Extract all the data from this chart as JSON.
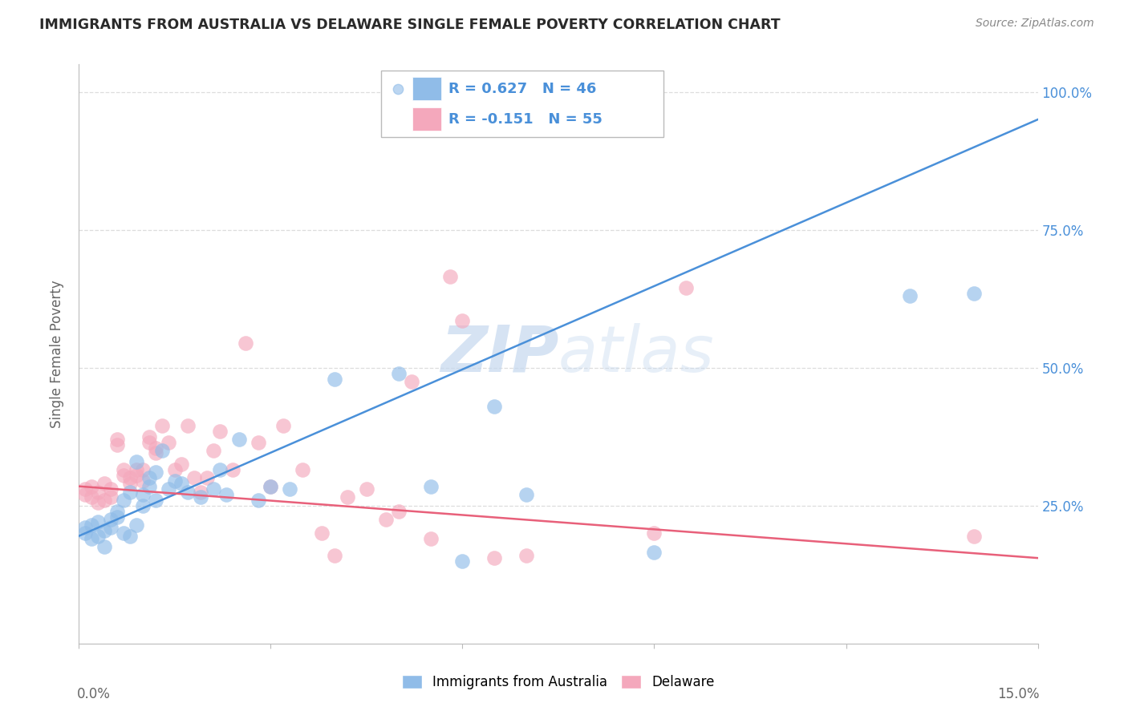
{
  "title": "IMMIGRANTS FROM AUSTRALIA VS DELAWARE SINGLE FEMALE POVERTY CORRELATION CHART",
  "source": "Source: ZipAtlas.com",
  "ylabel": "Single Female Poverty",
  "legend_blue_r": "R = 0.627",
  "legend_blue_n": "N = 46",
  "legend_pink_r": "R = -0.151",
  "legend_pink_n": "N = 55",
  "legend_blue_label": "Immigrants from Australia",
  "legend_pink_label": "Delaware",
  "blue_color": "#90bce8",
  "pink_color": "#f4a8bc",
  "blue_line_color": "#4a90d9",
  "pink_line_color": "#e8607a",
  "blue_text_color": "#4a90d9",
  "pink_text_color": "#e8607a",
  "watermark_color": "#c5d8ef",
  "blue_scatter_x": [
    0.001,
    0.001,
    0.002,
    0.002,
    0.003,
    0.003,
    0.004,
    0.004,
    0.005,
    0.005,
    0.006,
    0.006,
    0.007,
    0.007,
    0.008,
    0.008,
    0.009,
    0.009,
    0.01,
    0.01,
    0.011,
    0.011,
    0.012,
    0.012,
    0.013,
    0.014,
    0.015,
    0.016,
    0.017,
    0.019,
    0.021,
    0.022,
    0.023,
    0.025,
    0.028,
    0.03,
    0.033,
    0.04,
    0.05,
    0.055,
    0.06,
    0.065,
    0.07,
    0.09,
    0.13,
    0.14
  ],
  "blue_scatter_y": [
    0.2,
    0.21,
    0.19,
    0.215,
    0.195,
    0.22,
    0.175,
    0.205,
    0.21,
    0.225,
    0.23,
    0.24,
    0.2,
    0.26,
    0.195,
    0.275,
    0.215,
    0.33,
    0.25,
    0.27,
    0.3,
    0.285,
    0.26,
    0.31,
    0.35,
    0.28,
    0.295,
    0.29,
    0.275,
    0.265,
    0.28,
    0.315,
    0.27,
    0.37,
    0.26,
    0.285,
    0.28,
    0.48,
    0.49,
    0.285,
    0.15,
    0.43,
    0.27,
    0.165,
    0.63,
    0.635
  ],
  "pink_scatter_x": [
    0.001,
    0.001,
    0.002,
    0.002,
    0.003,
    0.003,
    0.004,
    0.004,
    0.005,
    0.005,
    0.006,
    0.006,
    0.007,
    0.007,
    0.008,
    0.008,
    0.009,
    0.009,
    0.01,
    0.01,
    0.011,
    0.011,
    0.012,
    0.012,
    0.013,
    0.014,
    0.015,
    0.016,
    0.017,
    0.018,
    0.019,
    0.02,
    0.021,
    0.022,
    0.024,
    0.026,
    0.028,
    0.03,
    0.032,
    0.035,
    0.038,
    0.04,
    0.042,
    0.045,
    0.048,
    0.05,
    0.052,
    0.055,
    0.058,
    0.06,
    0.065,
    0.07,
    0.09,
    0.095,
    0.14
  ],
  "pink_scatter_y": [
    0.27,
    0.28,
    0.265,
    0.285,
    0.255,
    0.275,
    0.26,
    0.29,
    0.265,
    0.28,
    0.36,
    0.37,
    0.305,
    0.315,
    0.29,
    0.3,
    0.315,
    0.305,
    0.295,
    0.315,
    0.365,
    0.375,
    0.355,
    0.345,
    0.395,
    0.365,
    0.315,
    0.325,
    0.395,
    0.3,
    0.275,
    0.3,
    0.35,
    0.385,
    0.315,
    0.545,
    0.365,
    0.285,
    0.395,
    0.315,
    0.2,
    0.16,
    0.265,
    0.28,
    0.225,
    0.24,
    0.475,
    0.19,
    0.665,
    0.585,
    0.155,
    0.16,
    0.2,
    0.645,
    0.195
  ],
  "blue_line_x": [
    0.0,
    0.15
  ],
  "blue_line_y": [
    0.195,
    0.95
  ],
  "pink_line_x": [
    0.0,
    0.15
  ],
  "pink_line_y": [
    0.285,
    0.155
  ],
  "xlim": [
    0.0,
    0.15
  ],
  "ylim": [
    0.0,
    1.05
  ],
  "ytick_vals": [
    0.25,
    0.5,
    0.75,
    1.0
  ],
  "xtick_vals": [
    0.0,
    0.03,
    0.06,
    0.09,
    0.12,
    0.15
  ],
  "grid_color": "#dddddd",
  "spine_color": "#bbbbbb",
  "tick_color": "#888888",
  "label_color": "#666666"
}
